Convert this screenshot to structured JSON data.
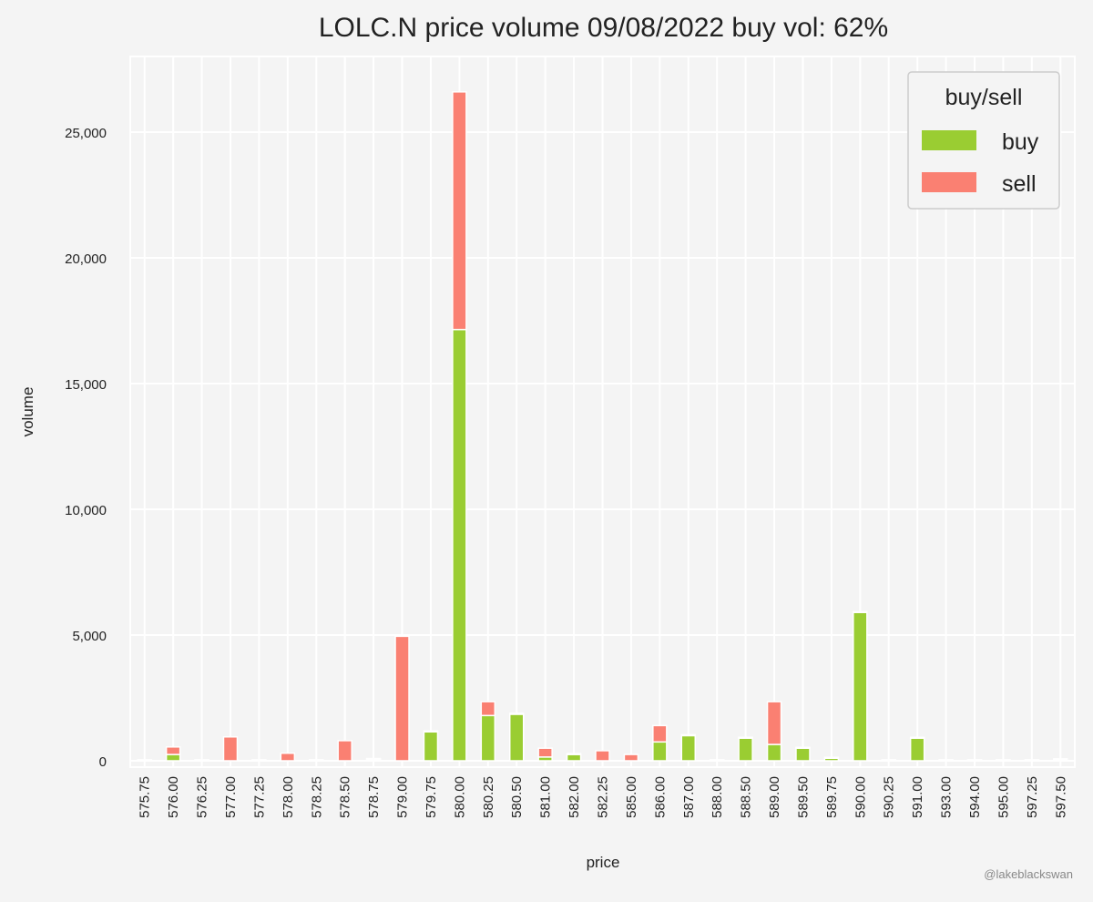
{
  "chart_data": {
    "type": "bar",
    "stacked": true,
    "title": "LOLC.N price volume 09/08/2022 buy vol: 62%",
    "xlabel": "price",
    "ylabel": "volume",
    "ylim": [
      0,
      28000
    ],
    "yticks": [
      0,
      5000,
      10000,
      15000,
      20000,
      25000
    ],
    "ytick_labels": [
      "0",
      "5,000",
      "10,000",
      "15,000",
      "20,000",
      "25,000"
    ],
    "grid": true,
    "legend_title": "buy/sell",
    "legend_position": "top-right",
    "categories": [
      "575.75",
      "576.00",
      "576.25",
      "577.00",
      "577.25",
      "578.00",
      "578.25",
      "578.50",
      "578.75",
      "579.00",
      "579.75",
      "580.00",
      "580.25",
      "580.50",
      "581.00",
      "582.00",
      "582.25",
      "585.00",
      "586.00",
      "587.00",
      "588.00",
      "588.50",
      "589.00",
      "589.50",
      "589.75",
      "590.00",
      "590.25",
      "591.00",
      "593.00",
      "594.00",
      "595.00",
      "597.25",
      "597.50"
    ],
    "series": [
      {
        "name": "buy",
        "color": "#9acd32",
        "values": [
          0,
          250,
          0,
          0,
          0,
          0,
          0,
          0,
          50,
          0,
          1150,
          17150,
          1800,
          1850,
          150,
          250,
          0,
          0,
          750,
          1000,
          0,
          900,
          650,
          500,
          100,
          5900,
          0,
          900,
          0,
          0,
          0,
          0,
          40
        ]
      },
      {
        "name": "sell",
        "color": "#fa8072",
        "values": [
          20,
          300,
          30,
          950,
          0,
          300,
          0,
          800,
          20,
          4950,
          0,
          9450,
          550,
          0,
          350,
          0,
          400,
          250,
          650,
          0,
          30,
          0,
          1700,
          0,
          0,
          0,
          0,
          0,
          0,
          0,
          0,
          0,
          20
        ]
      }
    ]
  },
  "credit": "@lakeblackswan"
}
